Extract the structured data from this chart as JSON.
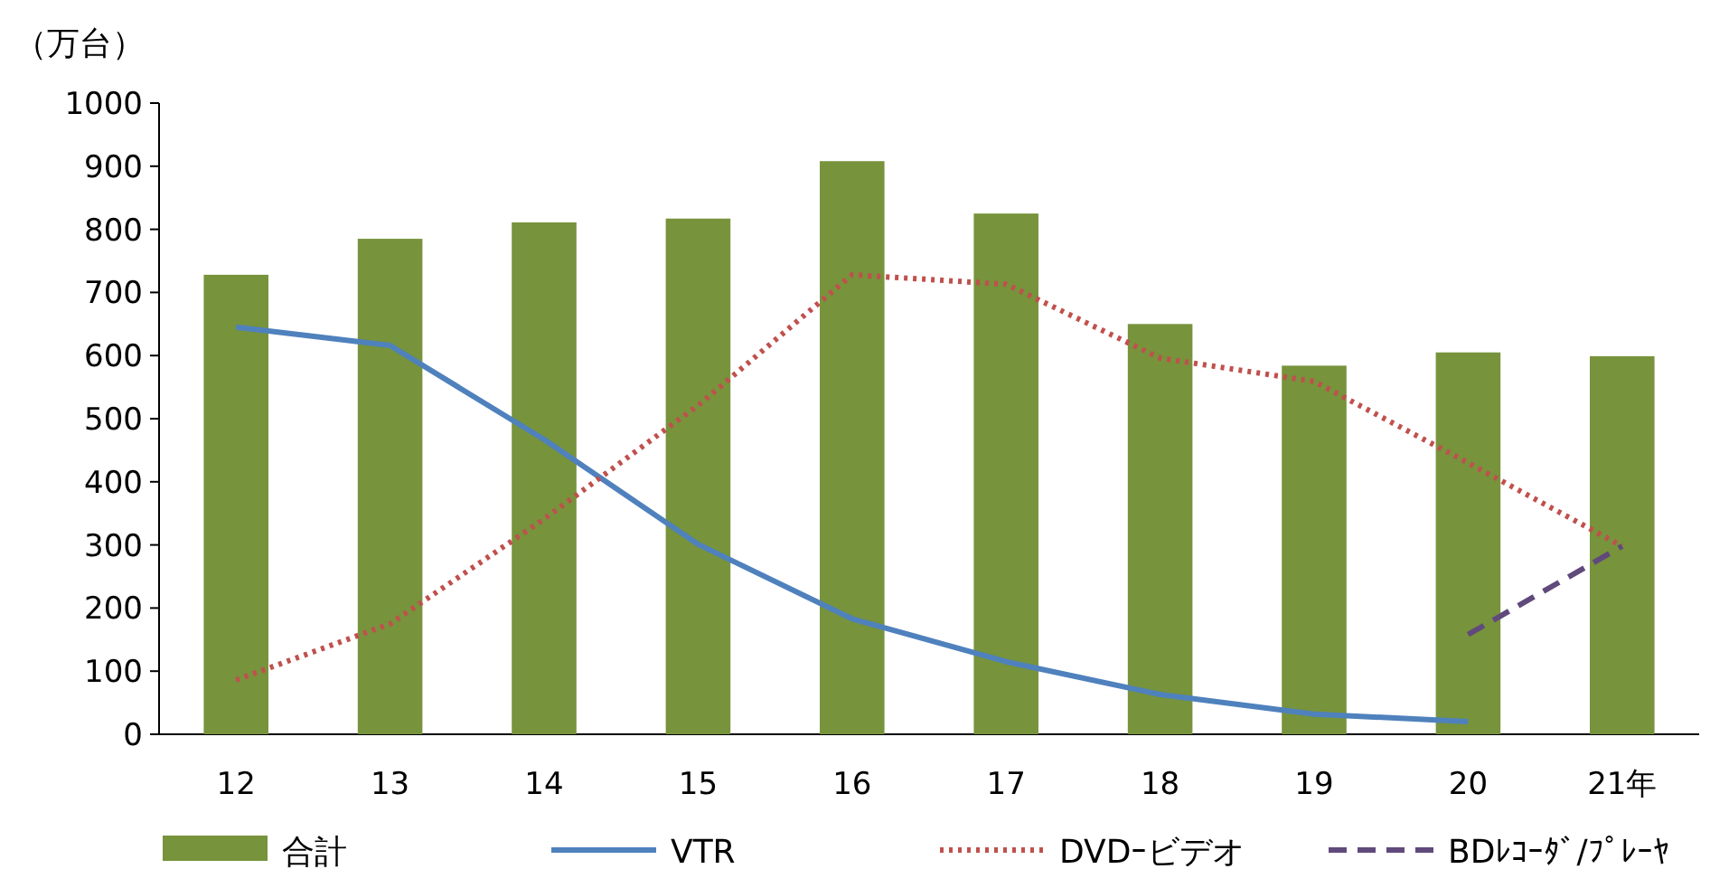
{
  "chart_data": {
    "type": "bar",
    "ylabel": "（万台）",
    "categories": [
      "12",
      "13",
      "14",
      "15",
      "16",
      "17",
      "18",
      "19",
      "20",
      "21年"
    ],
    "series": [
      {
        "name": "合計",
        "color": "#77933c",
        "values": [
          728,
          785,
          811,
          817,
          908,
          825,
          650,
          584,
          605,
          599
        ]
      },
      {
        "name": "VTR",
        "type": "line",
        "color": "#4f81bd",
        "line_style": "solid",
        "values": [
          645,
          616,
          467,
          301,
          183,
          115,
          63,
          32,
          20,
          null
        ]
      },
      {
        "name": "DVDｰビデオ",
        "type": "line",
        "color": "#c0504d",
        "line_style": "dotted",
        "values": [
          86,
          175,
          341,
          521,
          728,
          713,
          596,
          559,
          430,
          298
        ]
      },
      {
        "name": "BDﾚｺｰﾀﾞ/ﾌﾟﾚｰﾔ",
        "type": "line",
        "color": "#604a7b",
        "line_style": "dashed",
        "values": [
          null,
          null,
          null,
          null,
          null,
          null,
          null,
          null,
          158,
          298
        ]
      }
    ],
    "ylim": [
      0,
      1000
    ],
    "yticks": [
      0,
      100,
      200,
      300,
      400,
      500,
      600,
      700,
      800,
      900,
      1000
    ],
    "legend": "bottom"
  }
}
